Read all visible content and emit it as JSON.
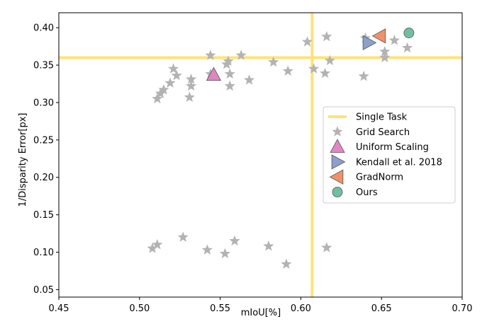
{
  "chart_data": {
    "type": "scatter",
    "title": "",
    "xlabel": "mIoU[%]",
    "ylabel": "1/Disparity Error[px]",
    "xlim": [
      0.45,
      0.7
    ],
    "ylim": [
      0.04,
      0.42
    ],
    "x_ticks": [
      "0.45",
      "0.50",
      "0.55",
      "0.60",
      "0.65",
      "0.70"
    ],
    "x_tick_values": [
      0.45,
      0.5,
      0.55,
      0.6,
      0.65,
      0.7
    ],
    "y_ticks": [
      "0.05",
      "0.10",
      "0.15",
      "0.20",
      "0.25",
      "0.30",
      "0.35",
      "0.40"
    ],
    "y_tick_values": [
      0.05,
      0.1,
      0.15,
      0.2,
      0.25,
      0.3,
      0.35,
      0.4
    ],
    "grid": false,
    "legend_position": "right",
    "reference_lines": {
      "name": "Single Task",
      "color": "#fce37a",
      "x": 0.607,
      "y": 0.36
    },
    "series": [
      {
        "name": "Grid Search",
        "marker": "star",
        "color": "#b3b3b3",
        "points": [
          [
            0.511,
            0.305
          ],
          [
            0.513,
            0.312
          ],
          [
            0.515,
            0.317
          ],
          [
            0.519,
            0.326
          ],
          [
            0.521,
            0.345
          ],
          [
            0.523,
            0.336
          ],
          [
            0.531,
            0.307
          ],
          [
            0.532,
            0.331
          ],
          [
            0.532,
            0.322
          ],
          [
            0.544,
            0.363
          ],
          [
            0.544,
            0.338
          ],
          [
            0.554,
            0.351
          ],
          [
            0.555,
            0.355
          ],
          [
            0.556,
            0.322
          ],
          [
            0.556,
            0.338
          ],
          [
            0.563,
            0.363
          ],
          [
            0.568,
            0.33
          ],
          [
            0.583,
            0.354
          ],
          [
            0.592,
            0.342
          ],
          [
            0.604,
            0.381
          ],
          [
            0.608,
            0.345
          ],
          [
            0.615,
            0.339
          ],
          [
            0.616,
            0.388
          ],
          [
            0.618,
            0.356
          ],
          [
            0.639,
            0.335
          ],
          [
            0.64,
            0.386
          ],
          [
            0.652,
            0.368
          ],
          [
            0.652,
            0.36
          ],
          [
            0.658,
            0.383
          ],
          [
            0.666,
            0.373
          ],
          [
            0.508,
            0.105
          ],
          [
            0.511,
            0.11
          ],
          [
            0.527,
            0.12
          ],
          [
            0.542,
            0.103
          ],
          [
            0.553,
            0.098
          ],
          [
            0.559,
            0.115
          ],
          [
            0.58,
            0.108
          ],
          [
            0.591,
            0.084
          ],
          [
            0.616,
            0.106
          ]
        ]
      },
      {
        "name": "Uniform Scaling",
        "marker": "triangle-up",
        "color": "#e186c0",
        "points": [
          [
            0.546,
            0.337
          ]
        ]
      },
      {
        "name": "Kendall et al. 2018",
        "marker": "triangle-right",
        "color": "#8da0cb",
        "points": [
          [
            0.642,
            0.38
          ]
        ]
      },
      {
        "name": "GradNorm",
        "marker": "triangle-left",
        "color": "#f0916c",
        "points": [
          [
            0.649,
            0.389
          ]
        ]
      },
      {
        "name": "Ours",
        "marker": "circle",
        "color": "#70c0a0",
        "points": [
          [
            0.667,
            0.393
          ]
        ]
      }
    ],
    "legend": [
      {
        "label": "Single Task",
        "marker": "line",
        "color": "#fce37a"
      },
      {
        "label": "Grid Search",
        "marker": "star",
        "color": "#b3b3b3"
      },
      {
        "label": "Uniform Scaling",
        "marker": "triangle-up",
        "color": "#e186c0"
      },
      {
        "label": "Kendall et al. 2018",
        "marker": "triangle-right",
        "color": "#8da0cb"
      },
      {
        "label": "GradNorm",
        "marker": "triangle-left",
        "color": "#f0916c"
      },
      {
        "label": "Ours",
        "marker": "circle",
        "color": "#70c0a0"
      }
    ]
  }
}
